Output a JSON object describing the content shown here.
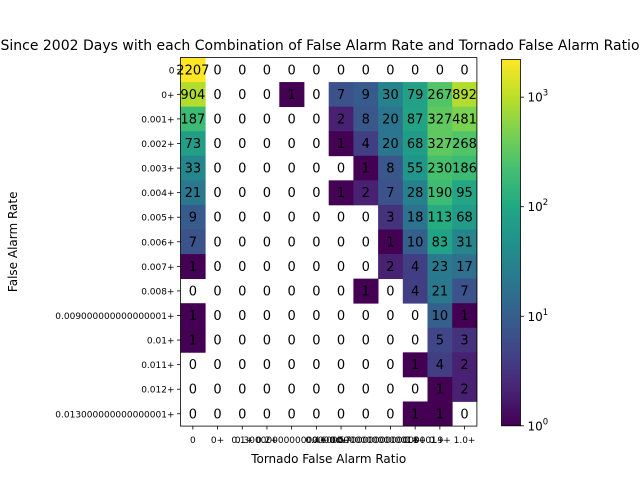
{
  "chart_data": {
    "type": "heatmap",
    "title": "Since 2002 Days with each Combination of False Alarm Rate and Tornado False Alarm Ratio",
    "xlabel": "Tornado False Alarm Ratio",
    "ylabel": "False Alarm Rate",
    "x_categories": [
      "0",
      "0+",
      "0.1+",
      "0.2+",
      "0.30000000000000004+",
      "0.4+",
      "0.5+",
      "0.6000000000000001+",
      "0.7000000000000001+",
      "0.8+",
      "0.9+",
      "1.0+"
    ],
    "y_categories": [
      "0",
      "0+",
      "0.001+",
      "0.002+",
      "0.003+",
      "0.004+",
      "0.005+",
      "0.006+",
      "0.007+",
      "0.008+",
      "0.009000000000000001+",
      "0.01+",
      "0.011+",
      "0.012+",
      "0.013000000000000001+"
    ],
    "values": [
      [
        2207,
        0,
        0,
        0,
        0,
        0,
        0,
        0,
        0,
        0,
        0,
        0
      ],
      [
        904,
        0,
        0,
        0,
        1,
        0,
        7,
        9,
        30,
        79,
        267,
        892
      ],
      [
        187,
        0,
        0,
        0,
        0,
        0,
        2,
        8,
        20,
        87,
        327,
        481
      ],
      [
        73,
        0,
        0,
        0,
        0,
        0,
        1,
        4,
        20,
        68,
        327,
        268
      ],
      [
        33,
        0,
        0,
        0,
        0,
        0,
        0,
        1,
        8,
        55,
        230,
        186
      ],
      [
        21,
        0,
        0,
        0,
        0,
        0,
        1,
        2,
        7,
        28,
        190,
        95
      ],
      [
        9,
        0,
        0,
        0,
        0,
        0,
        0,
        0,
        3,
        18,
        113,
        68
      ],
      [
        7,
        0,
        0,
        0,
        0,
        0,
        0,
        0,
        1,
        10,
        83,
        31
      ],
      [
        1,
        0,
        0,
        0,
        0,
        0,
        0,
        0,
        2,
        4,
        23,
        17
      ],
      [
        0,
        0,
        0,
        0,
        0,
        0,
        0,
        1,
        0,
        4,
        21,
        7
      ],
      [
        1,
        0,
        0,
        0,
        0,
        0,
        0,
        0,
        0,
        0,
        10,
        1
      ],
      [
        1,
        0,
        0,
        0,
        0,
        0,
        0,
        0,
        0,
        0,
        5,
        3
      ],
      [
        0,
        0,
        0,
        0,
        0,
        0,
        0,
        0,
        0,
        1,
        4,
        2
      ],
      [
        0,
        0,
        0,
        0,
        0,
        0,
        0,
        0,
        0,
        0,
        1,
        2
      ],
      [
        0,
        0,
        0,
        0,
        0,
        0,
        0,
        0,
        0,
        1,
        1,
        0
      ]
    ],
    "colorbar": {
      "scale": "log",
      "colormap": "viridis",
      "range": [
        1,
        2207
      ],
      "ticks": [
        {
          "value": 1,
          "base": "10",
          "exp": "0"
        },
        {
          "value": 10,
          "base": "10",
          "exp": "1"
        },
        {
          "value": 100,
          "base": "10",
          "exp": "2"
        },
        {
          "value": 1000,
          "base": "10",
          "exp": "3"
        }
      ]
    },
    "zero_cells": "blank",
    "colors": {
      "background": "#ffffff",
      "annotation_text": "#000000"
    }
  }
}
